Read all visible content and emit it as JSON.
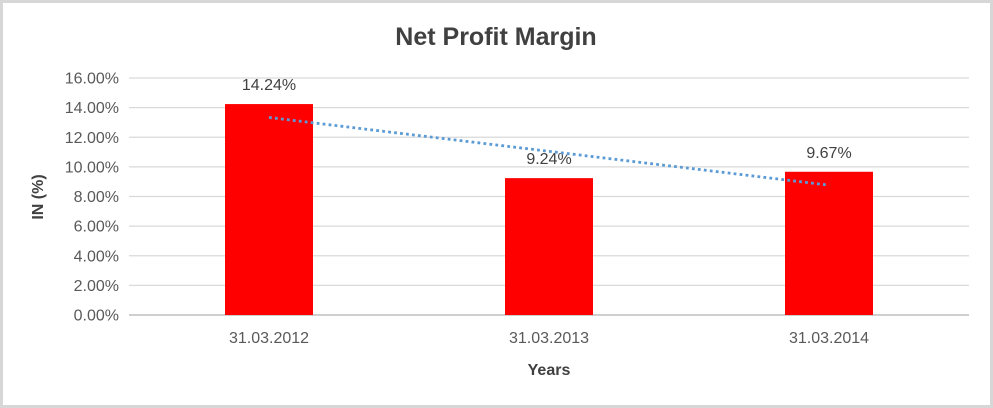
{
  "chart_data": {
    "type": "bar",
    "title": "Net Profit Margin",
    "xlabel": "Years",
    "ylabel": "IN (%)",
    "categories": [
      "31.03.2012",
      "31.03.2013",
      "31.03.2014"
    ],
    "values": [
      14.24,
      9.24,
      9.67
    ],
    "data_labels": [
      "14.24%",
      "9.24%",
      "9.67%"
    ],
    "ylim": [
      0,
      16
    ],
    "y_tick_step": 2,
    "y_tick_labels": [
      "0.00%",
      "2.00%",
      "4.00%",
      "6.00%",
      "8.00%",
      "10.00%",
      "12.00%",
      "14.00%",
      "16.00%"
    ],
    "grid": true,
    "legend": "none",
    "trendline": {
      "type": "linear",
      "style": "dotted",
      "color": "#5b9bd5",
      "series": "Net Profit Margin"
    },
    "colors": {
      "bar": "#ff0000",
      "gridline": "#d9d9d9",
      "axis_line": "#bfbfbf",
      "title_text": "#404040",
      "tick_text": "#595959",
      "frame_border": "#d7d7d7",
      "background": "#ffffff"
    }
  }
}
